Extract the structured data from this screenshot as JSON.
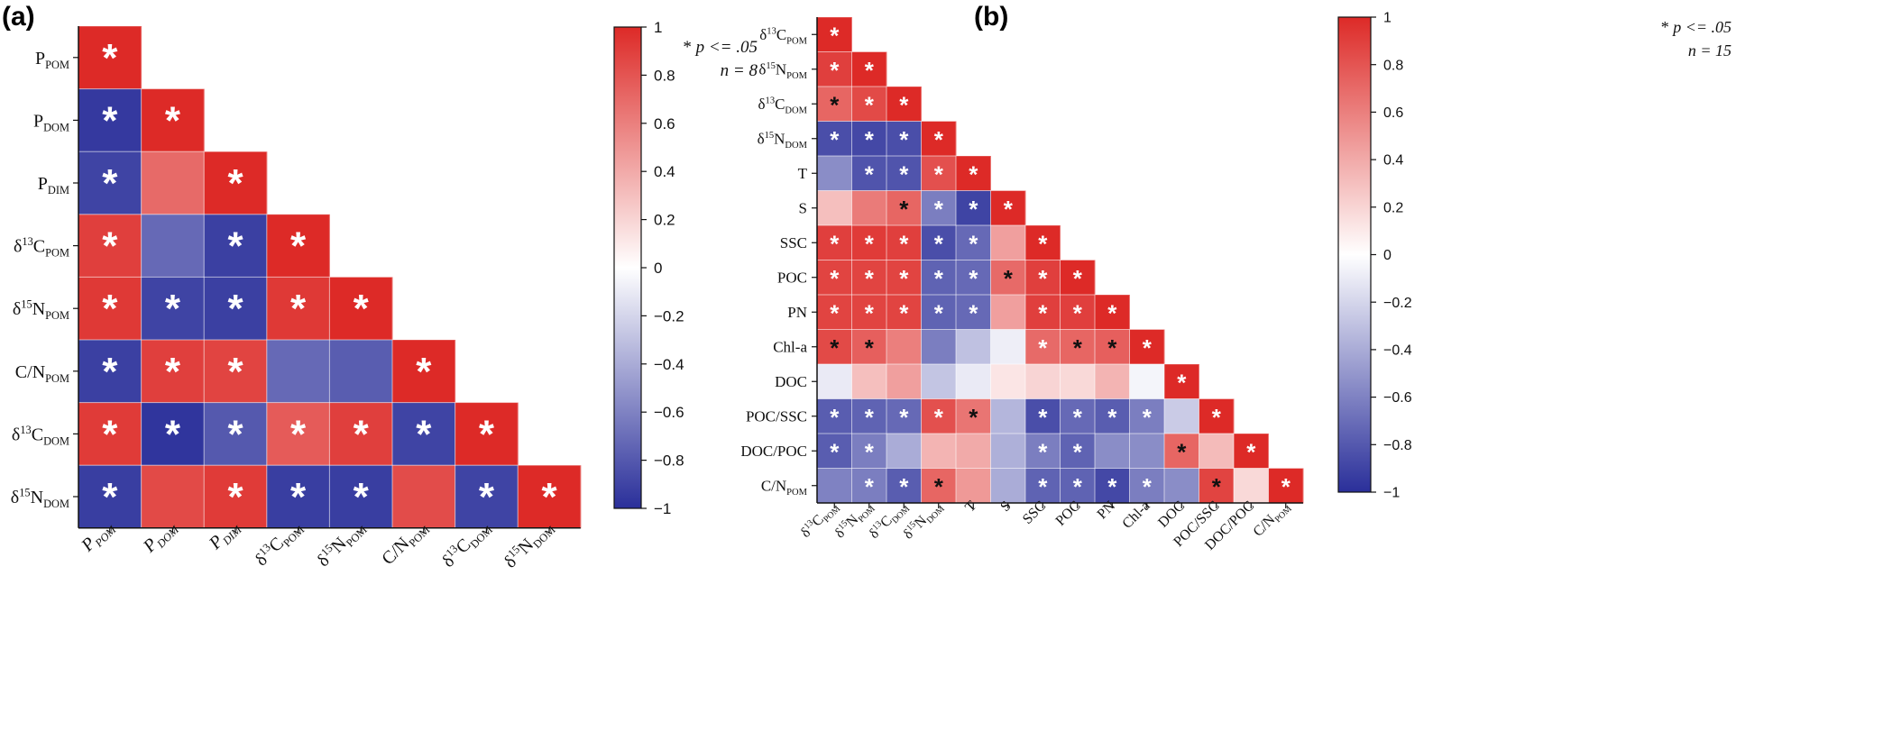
{
  "panels": [
    {
      "label": "(a)",
      "note_sig": "p <= .05",
      "note_n": "n = 8",
      "colorbar": {
        "ticks": [
          "1",
          "0.8",
          "0.6",
          "0.4",
          "0.2",
          "0",
          "−0.2",
          "−0.4",
          "−0.6",
          "−0.8",
          "−1"
        ],
        "range": [
          -1,
          1
        ],
        "colors": {
          "neg": "#2a2f9a",
          "mid": "#ffffff",
          "pos": "#dd2a27"
        }
      },
      "row_labels": [
        {
          "base": "P",
          "sup": "",
          "sub": "POM"
        },
        {
          "base": "P",
          "sup": "",
          "sub": "DOM"
        },
        {
          "base": "P",
          "sup": "",
          "sub": "DIM"
        },
        {
          "base": "δ",
          "sup": "13",
          "sub": "POM",
          "tail": "C"
        },
        {
          "base": "δ",
          "sup": "15",
          "sub": "POM",
          "tail": "N"
        },
        {
          "base": "C/N",
          "sup": "",
          "sub": "POM"
        },
        {
          "base": "δ",
          "sup": "13",
          "sub": "DOM",
          "tail": "C"
        },
        {
          "base": "δ",
          "sup": "15",
          "sub": "DOM",
          "tail": "N"
        }
      ],
      "col_labels": [
        {
          "base": "P",
          "sup": "",
          "sub": "POM",
          "italic": true
        },
        {
          "base": "P",
          "sup": "",
          "sub": "DOM",
          "italic": true
        },
        {
          "base": "P",
          "sup": "",
          "sub": "DIM",
          "italic": true
        },
        {
          "base": "δ",
          "sup": "13",
          "sub": "POM",
          "tail": "C"
        },
        {
          "base": "δ",
          "sup": "15",
          "sub": "POM",
          "tail": "N"
        },
        {
          "base": "C/N",
          "sup": "",
          "sub": "POM"
        },
        {
          "base": "δ",
          "sup": "13",
          "sub": "DOM",
          "tail": "C"
        },
        {
          "base": "δ",
          "sup": "15",
          "sub": "DOM",
          "tail": "N"
        }
      ]
    },
    {
      "label": "(b)",
      "note_sig": "p <= .05",
      "note_n": "n = 15",
      "colorbar": {
        "ticks": [
          "1",
          "0.8",
          "0.6",
          "0.4",
          "0.2",
          "0",
          "−0.2",
          "−0.4",
          "−0.6",
          "−0.8",
          "−1"
        ],
        "range": [
          -1,
          1
        ],
        "colors": {
          "neg": "#2a2f9a",
          "mid": "#ffffff",
          "pos": "#dd2a27"
        }
      },
      "row_labels": [
        {
          "base": "δ",
          "sup": "13",
          "sub": "POM",
          "tail": "C"
        },
        {
          "base": "δ",
          "sup": "15",
          "sub": "POM",
          "tail": "N"
        },
        {
          "base": "δ",
          "sup": "13",
          "sub": "DOM",
          "tail": "C"
        },
        {
          "base": "δ",
          "sup": "15",
          "sub": "DOM",
          "tail": "N"
        },
        {
          "base": "T",
          "sup": "",
          "sub": ""
        },
        {
          "base": "S",
          "sup": "",
          "sub": ""
        },
        {
          "base": "SSC",
          "sup": "",
          "sub": ""
        },
        {
          "base": "POC",
          "sup": "",
          "sub": ""
        },
        {
          "base": "PN",
          "sup": "",
          "sub": ""
        },
        {
          "base": "Chl-a",
          "sup": "",
          "sub": ""
        },
        {
          "base": "DOC",
          "sup": "",
          "sub": ""
        },
        {
          "base": "POC/SSC",
          "sup": "",
          "sub": ""
        },
        {
          "base": "DOC/POC",
          "sup": "",
          "sub": ""
        },
        {
          "base": "C/N",
          "sup": "",
          "sub": "POM"
        }
      ],
      "col_labels": [
        {
          "base": "δ",
          "sup": "13",
          "sub": "POM",
          "tail": "C"
        },
        {
          "base": "δ",
          "sup": "15",
          "sub": "POM",
          "tail": "N"
        },
        {
          "base": "δ",
          "sup": "13",
          "sub": "DOM",
          "tail": "C"
        },
        {
          "base": "δ",
          "sup": "15",
          "sub": "DOM",
          "tail": "N"
        },
        {
          "base": "T",
          "sup": "",
          "sub": ""
        },
        {
          "base": "S",
          "sup": "",
          "sub": ""
        },
        {
          "base": "SSC",
          "sup": "",
          "sub": ""
        },
        {
          "base": "POC",
          "sup": "",
          "sub": ""
        },
        {
          "base": "PN",
          "sup": "",
          "sub": ""
        },
        {
          "base": "Chl-a",
          "sup": "",
          "sub": ""
        },
        {
          "base": "DOC",
          "sup": "",
          "sub": ""
        },
        {
          "base": "POC/SSC",
          "sup": "",
          "sub": ""
        },
        {
          "base": "DOC/POC",
          "sup": "",
          "sub": ""
        },
        {
          "base": "C/N",
          "sup": "",
          "sub": "POM"
        }
      ]
    }
  ],
  "chart_data": [
    {
      "type": "heatmap",
      "title": "(a)",
      "variables": [
        "P_POM",
        "P_DOM",
        "P_DIM",
        "δ13C_POM",
        "δ15N_POM",
        "C/N_POM",
        "δ13C_DOM",
        "δ15N_DOM"
      ],
      "legend": "* p <= .05, n = 8",
      "colorbar_range": [
        -1,
        1
      ],
      "values": [
        [
          1
        ],
        [
          -0.95,
          1
        ],
        [
          -0.9,
          0.7,
          1
        ],
        [
          0.9,
          -0.72,
          -0.92,
          1
        ],
        [
          0.93,
          -0.9,
          -0.92,
          0.93,
          1
        ],
        [
          -0.92,
          0.9,
          0.88,
          -0.72,
          -0.78,
          1
        ],
        [
          0.92,
          -0.97,
          -0.8,
          0.77,
          0.9,
          -0.9,
          1
        ],
        [
          -0.93,
          0.85,
          0.92,
          -0.93,
          -0.93,
          0.84,
          -0.9,
          1
        ]
      ],
      "significant": [
        [
          1
        ],
        [
          1,
          1
        ],
        [
          1,
          0,
          1
        ],
        [
          1,
          0,
          1,
          1
        ],
        [
          1,
          1,
          1,
          1,
          1
        ],
        [
          1,
          1,
          1,
          0,
          0,
          1
        ],
        [
          1,
          1,
          1,
          1,
          1,
          1,
          1
        ],
        [
          1,
          0,
          1,
          1,
          1,
          0,
          1,
          1
        ]
      ],
      "star_color": [
        [
          "w"
        ],
        [
          "w",
          "w"
        ],
        [
          "w",
          "",
          "w"
        ],
        [
          "w",
          "",
          "w",
          "w"
        ],
        [
          "w",
          "w",
          "w",
          "w",
          "w"
        ],
        [
          "w",
          "w",
          "w",
          "",
          "",
          "w"
        ],
        [
          "w",
          "w",
          "w",
          "w",
          "w",
          "w",
          "w"
        ],
        [
          "w",
          "",
          "w",
          "w",
          "w",
          "",
          "w",
          "w"
        ]
      ]
    },
    {
      "type": "heatmap",
      "title": "(b)",
      "variables": [
        "δ13C_POM",
        "δ15N_POM",
        "δ13C_DOM",
        "δ15N_DOM",
        "T",
        "S",
        "SSC",
        "POC",
        "PN",
        "Chl-a",
        "DOC",
        "POC/SSC",
        "DOC/POC",
        "C/N_POM"
      ],
      "legend": "* p <= .05, n = 15",
      "colorbar_range": [
        -1,
        1
      ],
      "values": [
        [
          1
        ],
        [
          0.9,
          1
        ],
        [
          0.72,
          0.85,
          1
        ],
        [
          -0.85,
          -0.88,
          -0.85,
          1
        ],
        [
          -0.55,
          -0.82,
          -0.82,
          0.82,
          1
        ],
        [
          0.3,
          0.62,
          0.72,
          -0.62,
          -0.9,
          1
        ],
        [
          0.9,
          0.92,
          0.9,
          -0.85,
          -0.72,
          0.45,
          1
        ],
        [
          0.88,
          0.88,
          0.88,
          -0.75,
          -0.72,
          0.7,
          0.9,
          1
        ],
        [
          0.88,
          0.88,
          0.88,
          -0.75,
          -0.72,
          0.45,
          0.9,
          0.9,
          1
        ],
        [
          0.85,
          0.75,
          0.6,
          -0.62,
          -0.3,
          -0.08,
          0.7,
          0.72,
          0.75,
          1
        ],
        [
          -0.1,
          0.3,
          0.45,
          -0.28,
          -0.1,
          0.12,
          0.2,
          0.18,
          0.35,
          -0.05,
          1
        ],
        [
          -0.78,
          -0.75,
          -0.72,
          0.82,
          0.65,
          -0.35,
          -0.85,
          -0.72,
          -0.78,
          -0.62,
          -0.25,
          1
        ],
        [
          -0.78,
          -0.62,
          -0.4,
          0.35,
          0.4,
          -0.38,
          -0.62,
          -0.75,
          -0.55,
          -0.55,
          0.72,
          0.32,
          1
        ],
        [
          -0.6,
          -0.62,
          -0.78,
          0.72,
          0.48,
          -0.4,
          -0.75,
          -0.75,
          -0.88,
          -0.62,
          -0.55,
          0.88,
          0.18,
          1
        ]
      ],
      "significant": [
        [
          1
        ],
        [
          1,
          1
        ],
        [
          1,
          1,
          1
        ],
        [
          1,
          1,
          1,
          1
        ],
        [
          0,
          1,
          1,
          1,
          1
        ],
        [
          0,
          0,
          1,
          1,
          1,
          1
        ],
        [
          1,
          1,
          1,
          1,
          1,
          0,
          1
        ],
        [
          1,
          1,
          1,
          1,
          1,
          1,
          1,
          1
        ],
        [
          1,
          1,
          1,
          1,
          1,
          0,
          1,
          1,
          1
        ],
        [
          1,
          1,
          0,
          0,
          0,
          0,
          1,
          1,
          1,
          1
        ],
        [
          0,
          0,
          0,
          0,
          0,
          0,
          0,
          0,
          0,
          0,
          1
        ],
        [
          1,
          1,
          1,
          1,
          1,
          0,
          1,
          1,
          1,
          1,
          0,
          1
        ],
        [
          1,
          1,
          0,
          0,
          0,
          0,
          1,
          1,
          0,
          0,
          1,
          0,
          1
        ],
        [
          0,
          1,
          1,
          1,
          0,
          0,
          1,
          1,
          1,
          1,
          0,
          1,
          0,
          1
        ]
      ],
      "star_color": [
        [
          "w"
        ],
        [
          "w",
          "w"
        ],
        [
          "k",
          "w",
          "w"
        ],
        [
          "w",
          "w",
          "w",
          "w"
        ],
        [
          "",
          "w",
          "w",
          "w",
          "w"
        ],
        [
          "",
          "",
          "k",
          "w",
          "w",
          "w"
        ],
        [
          "w",
          "w",
          "w",
          "w",
          "w",
          "",
          "w"
        ],
        [
          "w",
          "w",
          "w",
          "w",
          "w",
          "k",
          "w",
          "w"
        ],
        [
          "w",
          "w",
          "w",
          "w",
          "w",
          "",
          "w",
          "w",
          "w"
        ],
        [
          "k",
          "k",
          "",
          "",
          "",
          "",
          "w",
          "k",
          "k",
          "w"
        ],
        [
          "",
          "",
          "",
          "",
          "",
          "",
          "",
          "",
          "",
          "",
          "w"
        ],
        [
          "w",
          "w",
          "w",
          "w",
          "k",
          "",
          "w",
          "w",
          "w",
          "w",
          "",
          "w"
        ],
        [
          "w",
          "w",
          "",
          "",
          "",
          "",
          "w",
          "w",
          "",
          "",
          "k",
          "",
          "w"
        ],
        [
          "",
          "w",
          "w",
          "k",
          "",
          "",
          "w",
          "w",
          "w",
          "w",
          "",
          "k",
          "",
          "w"
        ]
      ]
    }
  ]
}
